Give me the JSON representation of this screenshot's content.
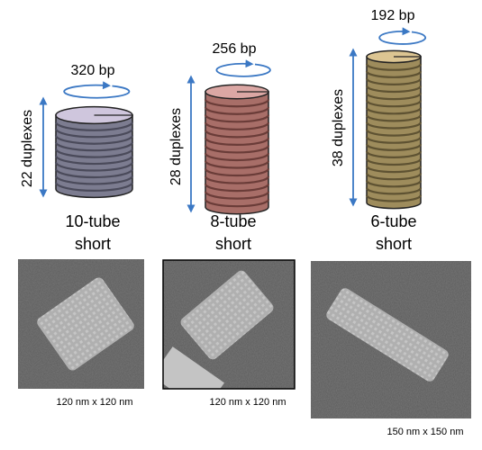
{
  "structures": [
    {
      "bp": "320 bp",
      "duplexes": "22 duplexes",
      "name": [
        "10-tube",
        "short"
      ],
      "caption": "120 nm x 120 nm"
    },
    {
      "bp": "256 bp",
      "duplexes": "28 duplexes",
      "name": [
        "8-tube",
        "short"
      ],
      "caption": "120 nm x 120 nm"
    },
    {
      "bp": "192 bp",
      "duplexes": "38 duplexes",
      "name": [
        "6-tube",
        "short"
      ],
      "caption": "150 nm x 150 nm"
    }
  ]
}
